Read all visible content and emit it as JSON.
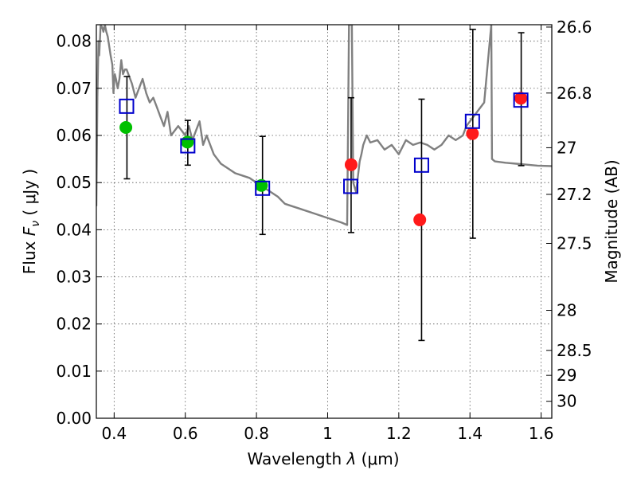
{
  "chart_data": {
    "type": "scatter",
    "title": "",
    "xlabel_prefix": "Wavelength  ",
    "xlabel_symbol": "λ",
    "xlabel_unit": " (μm)",
    "ylabel_prefix": "Flux  ",
    "ylabel_symbol": "F",
    "ylabel_subscript": "ν",
    "ylabel_unit": "  ( μJy )",
    "y2label": "Magnitude (AB)",
    "xlim": [
      0.35,
      1.63
    ],
    "ylim": [
      0.0,
      0.0835
    ],
    "grid": true,
    "x_ticks": [
      {
        "value": 0.4,
        "label": "0.4"
      },
      {
        "value": 0.6,
        "label": "0.6"
      },
      {
        "value": 0.8,
        "label": "0.8"
      },
      {
        "value": 1.0,
        "label": "1"
      },
      {
        "value": 1.2,
        "label": "1.2"
      },
      {
        "value": 1.4,
        "label": "1.4"
      },
      {
        "value": 1.6,
        "label": "1.6"
      }
    ],
    "y_ticks": [
      {
        "value": 0.0,
        "label": "0.00"
      },
      {
        "value": 0.01,
        "label": "0.01"
      },
      {
        "value": 0.02,
        "label": "0.02"
      },
      {
        "value": 0.03,
        "label": "0.03"
      },
      {
        "value": 0.04,
        "label": "0.04"
      },
      {
        "value": 0.05,
        "label": "0.05"
      },
      {
        "value": 0.06,
        "label": "0.06"
      },
      {
        "value": 0.07,
        "label": "0.07"
      },
      {
        "value": 0.08,
        "label": "0.08"
      }
    ],
    "y2_ticks": [
      {
        "flux": 0.083,
        "label": "26.6"
      },
      {
        "flux": 0.069,
        "label": "26.8"
      },
      {
        "flux": 0.0574,
        "label": "27"
      },
      {
        "flux": 0.0475,
        "label": "27.2"
      },
      {
        "flux": 0.0371,
        "label": "27.5"
      },
      {
        "flux": 0.0229,
        "label": "28"
      },
      {
        "flux": 0.0144,
        "label": "28.5"
      },
      {
        "flux": 0.0091,
        "label": "29"
      },
      {
        "flux": 0.0036,
        "label": "30"
      }
    ],
    "series": [
      {
        "name": "model_spectrum",
        "kind": "line",
        "color": "#808080",
        "x": [
          0.35,
          0.353,
          0.356,
          0.358,
          0.362,
          0.366,
          0.37,
          0.374,
          0.378,
          0.382,
          0.386,
          0.39,
          0.395,
          0.398,
          0.402,
          0.405,
          0.41,
          0.415,
          0.42,
          0.425,
          0.43,
          0.435,
          0.44,
          0.45,
          0.46,
          0.47,
          0.48,
          0.49,
          0.5,
          0.51,
          0.52,
          0.53,
          0.54,
          0.55,
          0.56,
          0.57,
          0.58,
          0.59,
          0.6,
          0.61,
          0.62,
          0.63,
          0.64,
          0.65,
          0.66,
          0.68,
          0.7,
          0.72,
          0.74,
          0.76,
          0.78,
          0.8,
          0.82,
          0.84,
          0.86,
          0.88,
          0.9,
          0.92,
          0.94,
          0.96,
          0.98,
          1.0,
          1.02,
          1.04,
          1.055,
          1.06,
          1.064,
          1.068,
          1.072,
          1.076,
          1.08,
          1.09,
          1.095,
          1.1,
          1.11,
          1.12,
          1.14,
          1.16,
          1.18,
          1.2,
          1.22,
          1.24,
          1.26,
          1.28,
          1.3,
          1.32,
          1.34,
          1.36,
          1.38,
          1.39,
          1.4,
          1.41,
          1.42,
          1.44,
          1.46,
          1.462,
          1.47,
          1.5,
          1.53,
          1.56,
          1.59,
          1.63
        ],
        "y": [
          0.045,
          0.068,
          0.08,
          0.077,
          0.0835,
          0.083,
          0.082,
          0.0835,
          0.082,
          0.081,
          0.079,
          0.077,
          0.075,
          0.069,
          0.073,
          0.072,
          0.07,
          0.072,
          0.076,
          0.073,
          0.074,
          0.074,
          0.073,
          0.071,
          0.068,
          0.07,
          0.072,
          0.069,
          0.067,
          0.068,
          0.066,
          0.064,
          0.062,
          0.065,
          0.06,
          0.061,
          0.062,
          0.061,
          0.06,
          0.062,
          0.059,
          0.061,
          0.063,
          0.058,
          0.06,
          0.056,
          0.054,
          0.053,
          0.052,
          0.0515,
          0.051,
          0.05,
          0.049,
          0.048,
          0.047,
          0.0455,
          0.045,
          0.0445,
          0.044,
          0.0435,
          0.043,
          0.0425,
          0.042,
          0.0415,
          0.041,
          0.0835,
          0.0835,
          0.0835,
          0.05,
          0.049,
          0.048,
          0.0545,
          0.056,
          0.058,
          0.06,
          0.0585,
          0.059,
          0.057,
          0.058,
          0.056,
          0.059,
          0.058,
          0.0585,
          0.058,
          0.057,
          0.058,
          0.06,
          0.059,
          0.06,
          0.062,
          0.063,
          0.064,
          0.065,
          0.067,
          0.0835,
          0.055,
          0.0545,
          0.0542,
          0.054,
          0.0538,
          0.0536,
          0.0535
        ]
      },
      {
        "name": "observed_green",
        "kind": "points",
        "color": "#00c000",
        "points": [
          {
            "x": 0.433,
            "y": 0.0617
          },
          {
            "x": 0.606,
            "y": 0.0586
          },
          {
            "x": 0.814,
            "y": 0.0494
          }
        ]
      },
      {
        "name": "observed_red",
        "kind": "points",
        "color": "#ff1a1a",
        "points": [
          {
            "x": 1.066,
            "y": 0.0538
          },
          {
            "x": 1.259,
            "y": 0.0421
          },
          {
            "x": 1.407,
            "y": 0.0604
          },
          {
            "x": 1.543,
            "y": 0.0679
          }
        ]
      },
      {
        "name": "model_photometry",
        "kind": "squares",
        "color": "#0000cc",
        "points": [
          {
            "x": 0.435,
            "y": 0.0662
          },
          {
            "x": 0.607,
            "y": 0.0578
          },
          {
            "x": 0.817,
            "y": 0.0488
          },
          {
            "x": 1.065,
            "y": 0.0492
          },
          {
            "x": 1.264,
            "y": 0.0537
          },
          {
            "x": 1.407,
            "y": 0.063
          },
          {
            "x": 1.543,
            "y": 0.0675
          }
        ]
      },
      {
        "name": "error_bars",
        "kind": "errorbar",
        "color": "#000000",
        "bars": [
          {
            "x": 0.436,
            "low": 0.0508,
            "high": 0.0725
          },
          {
            "x": 0.607,
            "low": 0.0537,
            "high": 0.0632
          },
          {
            "x": 0.817,
            "low": 0.039,
            "high": 0.0598
          },
          {
            "x": 1.066,
            "low": 0.0394,
            "high": 0.068
          },
          {
            "x": 1.264,
            "low": 0.0165,
            "high": 0.0677
          },
          {
            "x": 1.408,
            "low": 0.0382,
            "high": 0.0825
          },
          {
            "x": 1.544,
            "low": 0.0536,
            "high": 0.0818
          }
        ]
      }
    ]
  }
}
